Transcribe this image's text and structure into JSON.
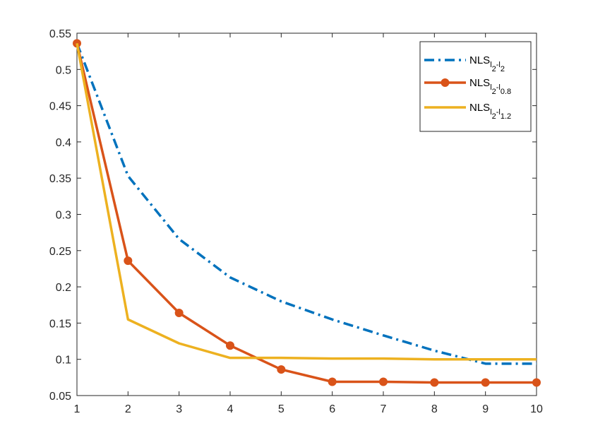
{
  "chart_data": {
    "type": "line",
    "title": "",
    "xlabel": "",
    "ylabel": "",
    "xlim": [
      1,
      10
    ],
    "ylim": [
      0.05,
      0.55
    ],
    "x_ticks": [
      1,
      2,
      3,
      4,
      5,
      6,
      7,
      8,
      9,
      10
    ],
    "y_ticks": [
      0.05,
      0.1,
      0.15,
      0.2,
      0.25,
      0.3,
      0.35,
      0.4,
      0.45,
      0.5,
      0.55
    ],
    "x_tick_labels": [
      "1",
      "2",
      "3",
      "4",
      "5",
      "6",
      "7",
      "8",
      "9",
      "10"
    ],
    "y_tick_labels": [
      "0.05",
      "0.1",
      "0.15",
      "0.2",
      "0.25",
      "0.3",
      "0.35",
      "0.4",
      "0.45",
      "0.5",
      "0.55"
    ],
    "grid": false,
    "legend_position": "top-right",
    "x": [
      1,
      2,
      3,
      4,
      5,
      6,
      7,
      8,
      9,
      10
    ],
    "series": [
      {
        "name": "NLS_{l2-l2}",
        "legend": {
          "main": "NLS",
          "parts": [
            [
              "sub",
              "l"
            ],
            [
              "subsub",
              "2"
            ],
            [
              "sub",
              "-l"
            ],
            [
              "subsub",
              "2"
            ]
          ]
        },
        "values": [
          0.536,
          0.353,
          0.266,
          0.213,
          0.18,
          0.155,
          0.133,
          0.112,
          0.094,
          0.094
        ],
        "color": "#0072BD",
        "style": "dashdot",
        "marker": "none"
      },
      {
        "name": "NLS_{l2-l0.8}",
        "legend": {
          "main": "NLS",
          "parts": [
            [
              "sub",
              "l"
            ],
            [
              "subsub",
              "2"
            ],
            [
              "sub",
              "-l"
            ],
            [
              "subsub",
              "0.8"
            ]
          ]
        },
        "values": [
          0.536,
          0.236,
          0.164,
          0.119,
          0.086,
          0.069,
          0.069,
          0.068,
          0.068,
          0.068
        ],
        "color": "#D95319",
        "style": "solid",
        "marker": "circle"
      },
      {
        "name": "NLS_{l2-l1.2}",
        "legend": {
          "main": "NLS",
          "parts": [
            [
              "sub",
              "l"
            ],
            [
              "subsub",
              "2"
            ],
            [
              "sub",
              "-l"
            ],
            [
              "subsub",
              "1.2"
            ]
          ]
        },
        "values": [
          0.536,
          0.155,
          0.122,
          0.102,
          0.102,
          0.101,
          0.101,
          0.1,
          0.1,
          0.1
        ],
        "color": "#EDB120",
        "style": "solid",
        "marker": "none"
      }
    ]
  }
}
